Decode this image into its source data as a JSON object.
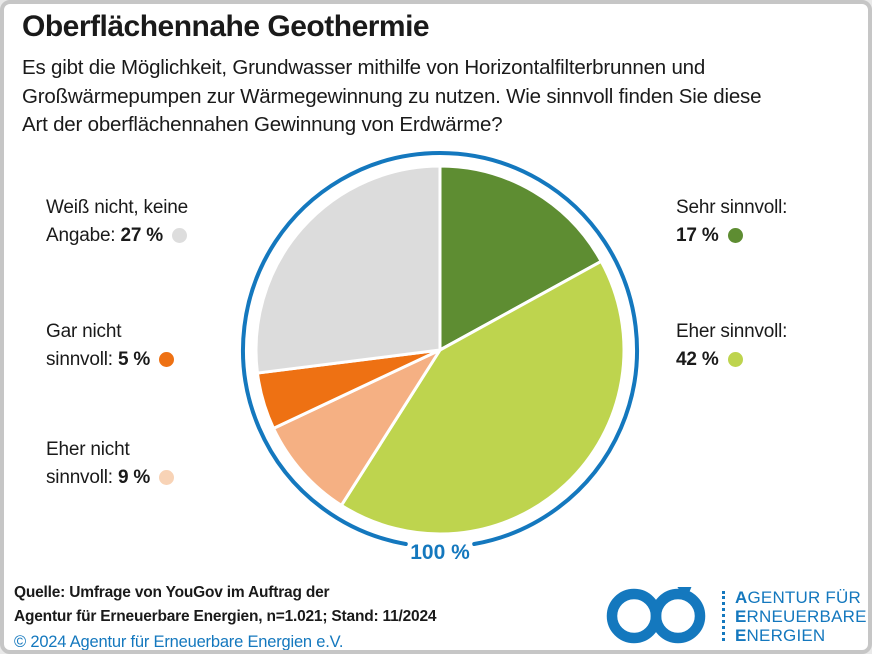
{
  "header": {
    "title": "Oberflächennahe Geothermie",
    "subtitle_lines": [
      "Es gibt die Möglichkeit, Grundwasser mithilfe von Horizontalfilterbrunnen und",
      "Großwärmepumpen zur Wärmegewinnung zu nutzen. Wie sinnvoll finden Sie diese",
      "Art der oberflächennahen Gewinnung von Erdwärme?"
    ]
  },
  "chart_data": {
    "type": "pie",
    "title": "Oberflächennahe Geothermie",
    "question": "Wie sinnvoll finden Sie diese Art der oberflächennahen Gewinnung von Erdwärme?",
    "start_angle_deg": 0,
    "direction": "clockwise",
    "unit": "%",
    "total_label": "100 %",
    "slices": [
      {
        "label": "Sehr sinnvoll",
        "value": 17,
        "color": "#5E8D32"
      },
      {
        "label": "Eher sinnvoll",
        "value": 42,
        "color": "#BED44E"
      },
      {
        "label": "Eher nicht sinnvoll",
        "value": 9,
        "color": "#F5B083"
      },
      {
        "label": "Gar nicht sinnvoll",
        "value": 5,
        "color": "#EE7113"
      },
      {
        "label": "Weiß nicht, keine Angabe",
        "value": 27,
        "color": "#DCDCDC"
      }
    ],
    "ring_color": "#1478BE",
    "slice_border_color": "#FFFFFF"
  },
  "legend": {
    "items": [
      {
        "line1": "Weiß nicht, keine",
        "line2_prefix": "Angabe: ",
        "value": "27 %",
        "dot_color": "#DDDDDD"
      },
      {
        "line1": "Gar nicht",
        "line2_prefix": "sinnvoll: ",
        "value": "5 %",
        "dot_color": "#EE7113"
      },
      {
        "line1": "Eher nicht",
        "line2_prefix": "sinnvoll: ",
        "value": "9 %",
        "dot_color": "#F8D3B6"
      },
      {
        "line1": "Sehr sinnvoll:",
        "line2_prefix": "",
        "value": "17 %",
        "dot_color": "#5E8D32"
      },
      {
        "line1": "Eher sinnvoll:",
        "line2_prefix": "",
        "value": "42 %",
        "dot_color": "#BED44E"
      }
    ]
  },
  "footer": {
    "source_line1": "Quelle: Umfrage von YouGov im Auftrag der",
    "source_line2": "Agentur für Erneuerbare Energien, n=1.021; Stand: 11/2024",
    "copyright": "© 2024 Agentur für Erneuerbare Energien e.V.",
    "copyright_color": "#1478BE",
    "logo": {
      "lines": [
        "AGENTUR FÜR",
        "ERNEUERBARE",
        "ENERGIEN"
      ],
      "color": "#1478BE",
      "icon": "infinity-arrow-icon"
    }
  }
}
